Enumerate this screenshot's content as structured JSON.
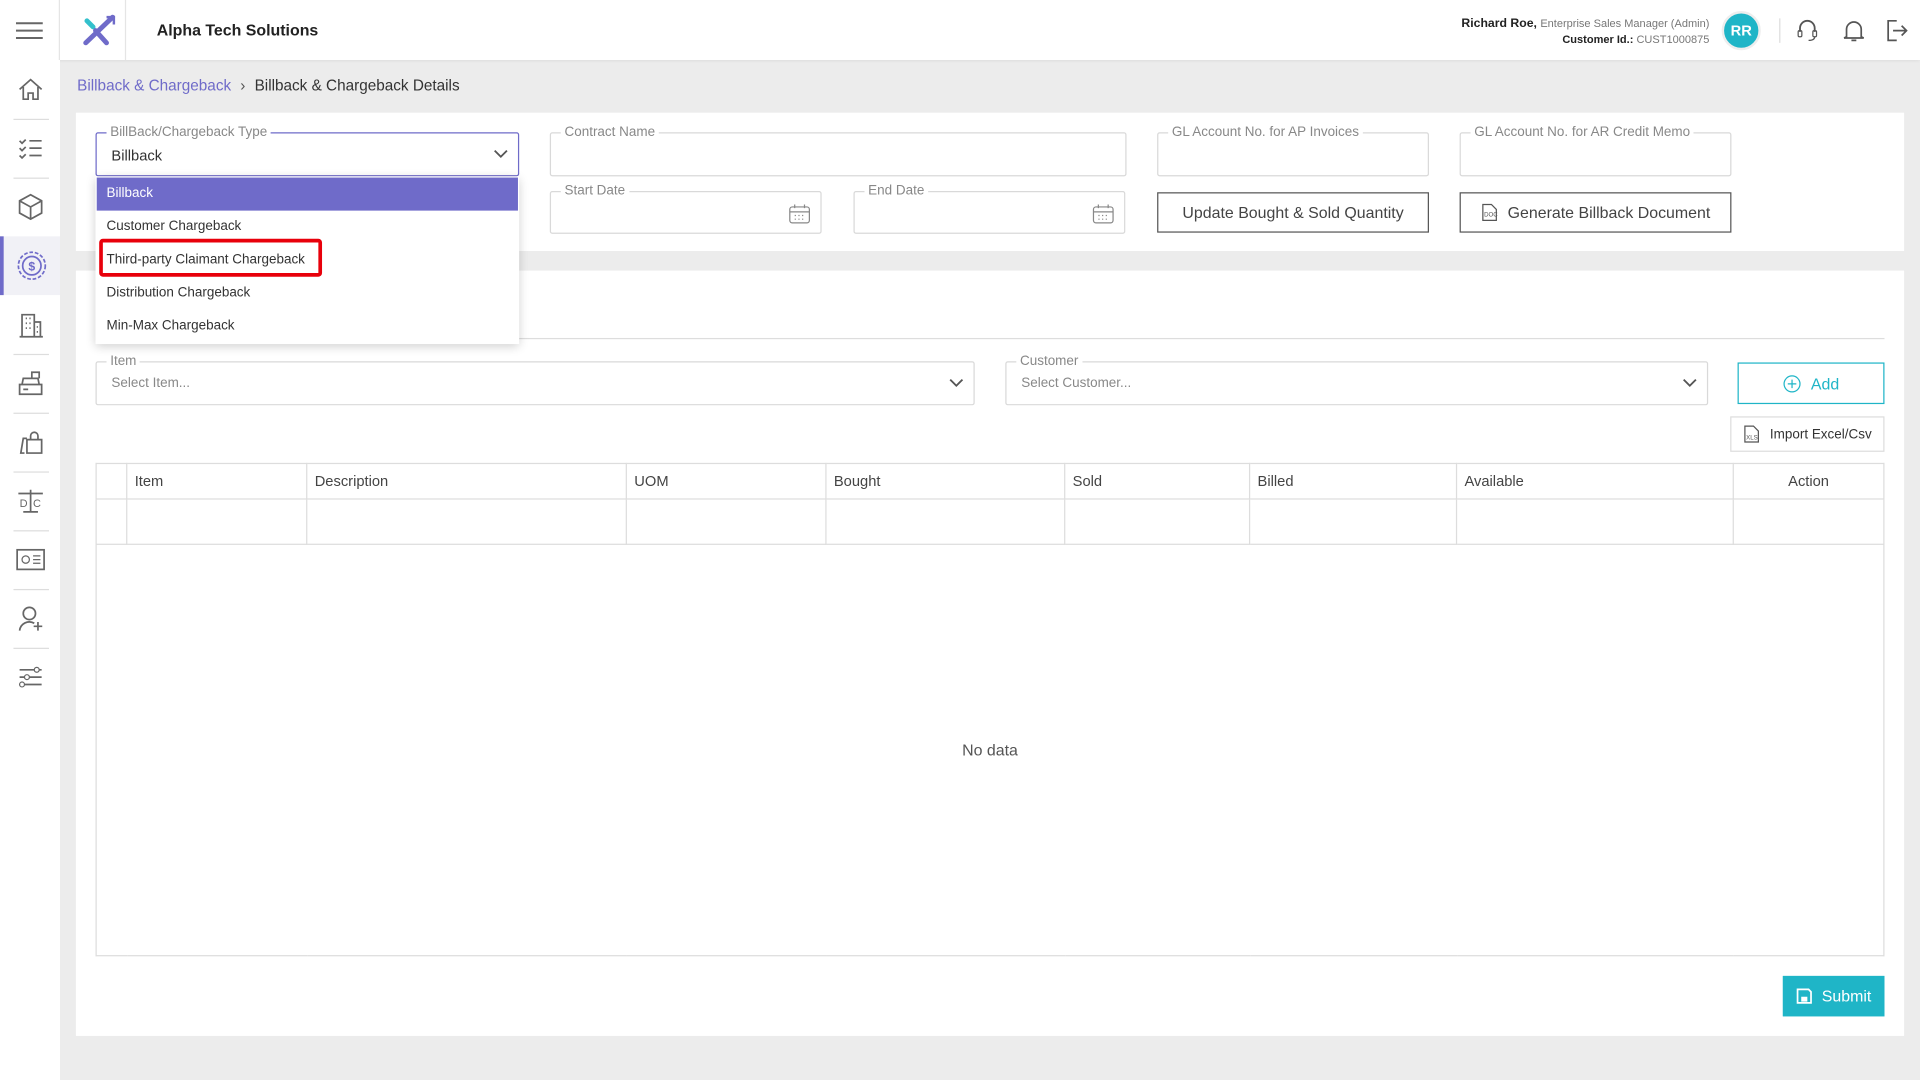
{
  "header": {
    "company": "Alpha Tech Solutions",
    "user_name": "Richard Roe,",
    "user_role": "Enterprise Sales Manager (Admin)",
    "customer_id_label": "Customer Id.:",
    "customer_id": "CUST1000875",
    "avatar_initials": "RR",
    "accent": "#6f6bc9",
    "teal": "#1fb5c7"
  },
  "sidebar": {
    "items": [
      "home-icon",
      "checklist-icon",
      "box-icon",
      "dollar-icon",
      "building-icon",
      "cash-register-icon",
      "shopping-bags-icon",
      "debit-credit-scale-icon",
      "report-card-icon",
      "add-user-icon",
      "settings-sliders-icon"
    ],
    "active": "dollar-icon"
  },
  "breadcrumb": {
    "parent": "Billback & Chargeback",
    "current": "Billback & Chargeback Details"
  },
  "form": {
    "type_label": "BillBack/Chargeback Type",
    "type_value": "Billback",
    "contract_label": "Contract Name",
    "gl_ap_label": "GL Account No. for AP Invoices",
    "gl_ar_label": "GL Account No. for AR Credit Memo",
    "start_label": "Start Date",
    "end_label": "End Date",
    "update_btn": "Update Bought & Sold Quantity",
    "generate_btn": "Generate Billback Document"
  },
  "dropdown": {
    "options": [
      "Billback",
      "Customer Chargeback",
      "Third-party Claimant Chargeback",
      "Distribution Chargeback",
      "Min-Max Chargeback"
    ],
    "selected": "Billback",
    "highlighted": "Third-party Claimant Chargeback"
  },
  "items": {
    "item_label": "Item",
    "item_placeholder": "Select Item...",
    "customer_label": "Customer",
    "customer_placeholder": "Select Customer...",
    "add_btn": "Add",
    "import_btn": "Import Excel/Csv"
  },
  "table": {
    "columns": [
      "Item",
      "Description",
      "UOM",
      "Bought",
      "Sold",
      "Billed",
      "Available",
      "Action"
    ],
    "empty": "No data"
  },
  "submit": "Submit"
}
